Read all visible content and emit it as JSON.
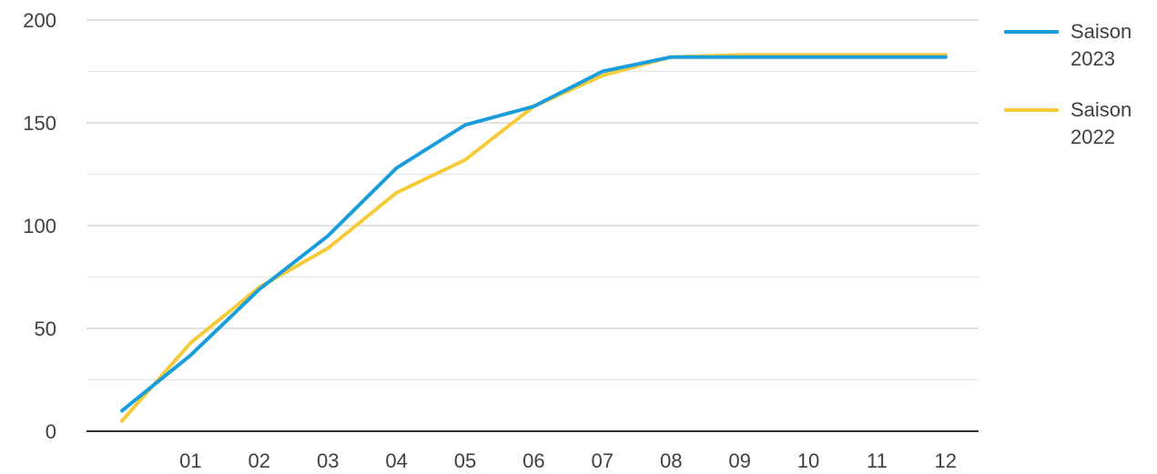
{
  "chart_data": {
    "type": "line",
    "title": "",
    "xlabel": "",
    "ylabel": "",
    "categories": [
      "",
      "01",
      "02",
      "03",
      "04",
      "05",
      "06",
      "07",
      "08",
      "09",
      "10",
      "11",
      "12"
    ],
    "ylim": [
      0,
      200
    ],
    "yticks": [
      0,
      50,
      100,
      150,
      200
    ],
    "grid": true,
    "legend_position": "right",
    "series": [
      {
        "name": "Saison 2023",
        "color": "#1a9ddb",
        "values": [
          10,
          37,
          69,
          95,
          128,
          149,
          158,
          175,
          182,
          182,
          182,
          182,
          182
        ]
      },
      {
        "name": "Saison 2022",
        "color": "#f5cb3a",
        "values": [
          5,
          43,
          70,
          89,
          116,
          132,
          158,
          173,
          182,
          183,
          183,
          183,
          183
        ]
      }
    ]
  }
}
